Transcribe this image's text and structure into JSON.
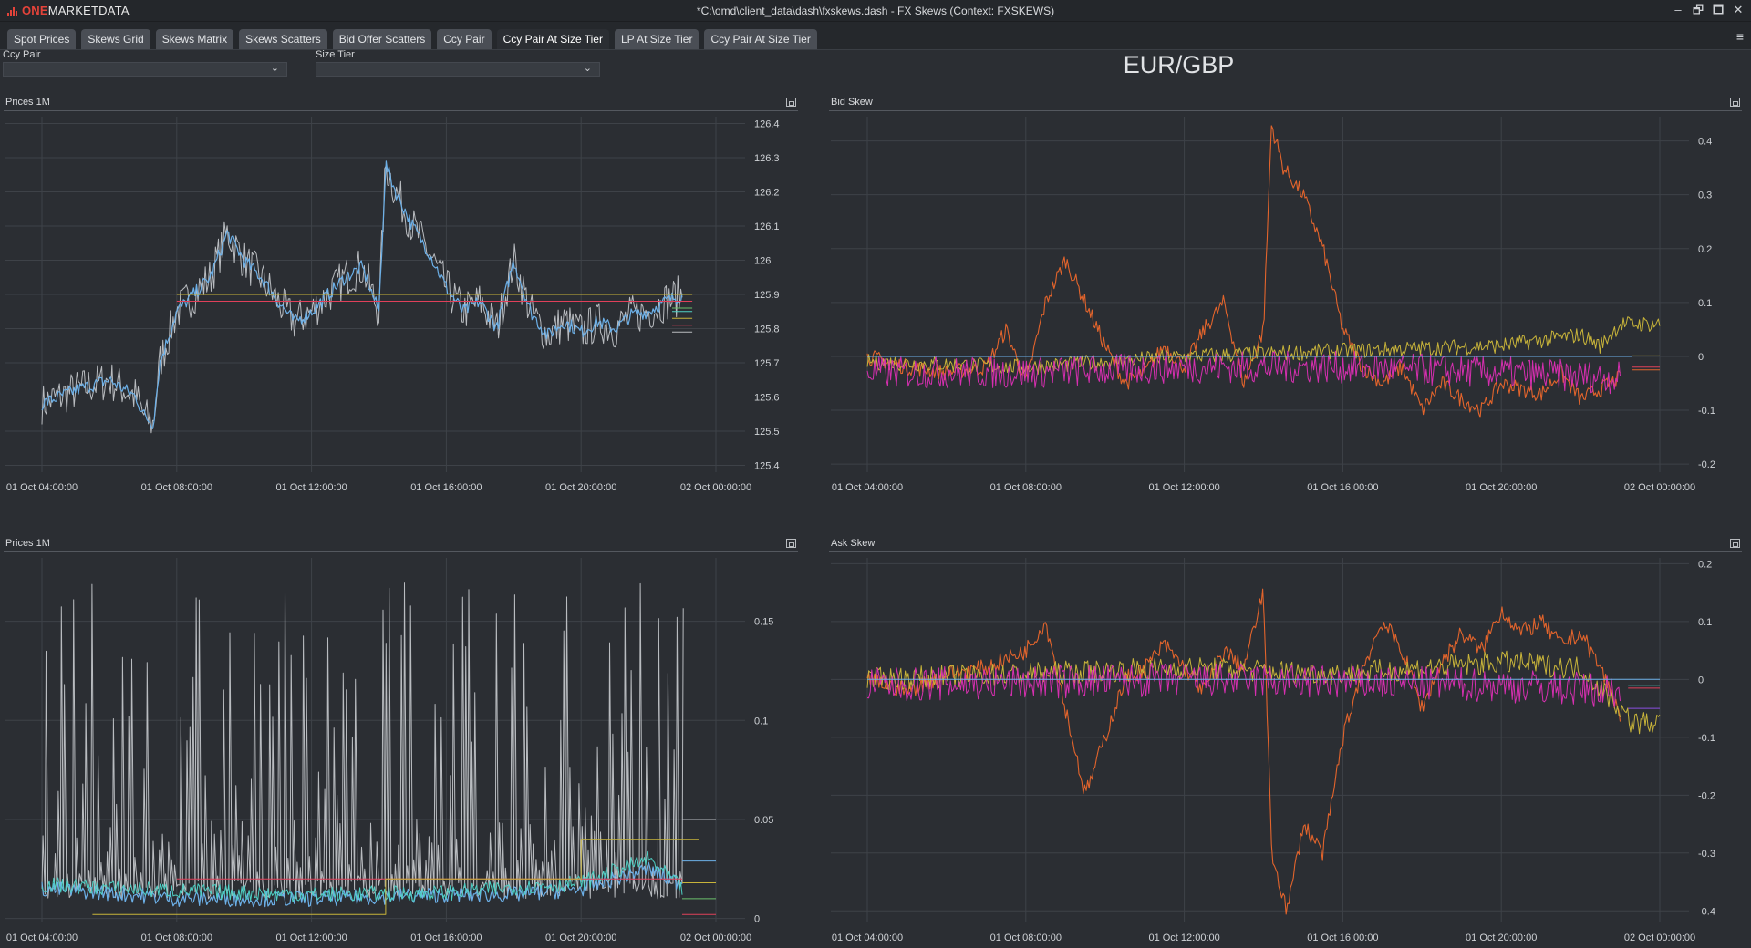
{
  "app": {
    "logo_brand": "ONE",
    "logo_rest": "MARKETDATA",
    "window_title": "*C:\\omd\\client_data\\dash\\fxskews.dash - FX Skews (Context: FXSKEWS)",
    "window_controls": [
      "–",
      "🗗",
      "🗖",
      "✕"
    ]
  },
  "tabs": [
    {
      "label": "Spot Prices",
      "active": false
    },
    {
      "label": "Skews Grid",
      "active": false
    },
    {
      "label": "Skews Matrix",
      "active": false
    },
    {
      "label": "Skews Scatters",
      "active": false
    },
    {
      "label": "Bid Offer Scatters",
      "active": false
    },
    {
      "label": "Ccy Pair",
      "active": false
    },
    {
      "label": "Ccy Pair At Size Tier",
      "active": true
    },
    {
      "label": "LP At Size Tier",
      "active": false
    },
    {
      "label": "Ccy Pair At Size Tier",
      "active": false
    }
  ],
  "menu_icon": "≡",
  "filters": {
    "ccy_pair_label": "Ccy Pair",
    "ccy_pair_value": "",
    "size_tier_label": "Size Tier",
    "size_tier_value": ""
  },
  "pair_title": "EUR/GBP",
  "colors": {
    "grid": "#3e4248",
    "blue": "#6cb0e8",
    "cyan": "#4fd1c5",
    "grey": "#b9bcc0",
    "orange": "#e2642c",
    "magenta": "#d62fb0",
    "yellow": "#c8b43a",
    "red": "#e0405a",
    "green": "#6bc06b",
    "purple": "#8a4fe0"
  },
  "chart_data": [
    {
      "id": "prices-top",
      "type": "line",
      "title": "Prices 1M",
      "xlabels": [
        "01 Oct 04:00:00",
        "01 Oct 08:00:00",
        "01 Oct 12:00:00",
        "01 Oct 16:00:00",
        "01 Oct 20:00:00",
        "02 Oct 00:00:00"
      ],
      "xlim": [
        4,
        24
      ],
      "ylim": [
        125.38,
        126.42
      ],
      "yticks": [
        125.4,
        125.5,
        125.6,
        125.7,
        125.8,
        125.9,
        126,
        126.1,
        126.2,
        126.3,
        126.4
      ],
      "ytick_labels": [
        "125.4",
        "125.5",
        "125.6",
        "125.7",
        "125.8",
        "125.9",
        "126",
        "126.1",
        "126.2",
        "126.3",
        "126.4"
      ],
      "grid": true,
      "series": [
        {
          "color": "grey",
          "width": 1.0,
          "kind": "band",
          "band": 0.06,
          "x": [
            4,
            4.5,
            5,
            6,
            6.8,
            7,
            7.3,
            7.5,
            8,
            8.5,
            9,
            9.5,
            10,
            10.5,
            11,
            11.5,
            12,
            12.5,
            13,
            13.5,
            14,
            14.2,
            14.5,
            15,
            15.5,
            16,
            16.5,
            17,
            17.5,
            18,
            18.5,
            19,
            19.5,
            20,
            20.5,
            21,
            21.5,
            22,
            22.5,
            23
          ],
          "y": [
            125.58,
            125.6,
            125.62,
            125.65,
            125.6,
            125.55,
            125.52,
            125.7,
            125.85,
            125.9,
            125.95,
            126.08,
            126.0,
            125.95,
            125.88,
            125.82,
            125.85,
            125.9,
            125.95,
            125.98,
            125.85,
            126.28,
            126.2,
            126.1,
            126.02,
            125.92,
            125.85,
            125.88,
            125.8,
            126.0,
            125.85,
            125.78,
            125.82,
            125.79,
            125.82,
            125.8,
            125.84,
            125.85,
            125.88,
            125.9
          ]
        },
        {
          "color": "blue",
          "width": 1.2,
          "kind": "band",
          "band": 0.02,
          "x": [
            4,
            4.5,
            5,
            6,
            6.8,
            7,
            7.3,
            7.5,
            8,
            8.5,
            9,
            9.5,
            10,
            10.5,
            11,
            11.5,
            12,
            12.5,
            13,
            13.5,
            14,
            14.2,
            14.5,
            15,
            15.5,
            16,
            16.5,
            17,
            17.5,
            18,
            18.5,
            19,
            19.5,
            20,
            20.5,
            21,
            21.5,
            22,
            22.5,
            23
          ],
          "y": [
            125.58,
            125.6,
            125.62,
            125.65,
            125.6,
            125.55,
            125.52,
            125.7,
            125.85,
            125.9,
            125.95,
            126.08,
            126.0,
            125.95,
            125.88,
            125.82,
            125.85,
            125.9,
            125.95,
            125.98,
            125.85,
            126.28,
            126.2,
            126.1,
            126.02,
            125.92,
            125.85,
            125.88,
            125.8,
            126.0,
            125.85,
            125.78,
            125.82,
            125.79,
            125.82,
            125.8,
            125.84,
            125.85,
            125.88,
            125.9
          ]
        },
        {
          "color": "red",
          "width": 1,
          "x": [
            8,
            23.3
          ],
          "y": [
            125.88,
            125.88
          ]
        },
        {
          "color": "yellow",
          "width": 1,
          "x": [
            8,
            23.3
          ],
          "y": [
            125.9,
            125.9
          ]
        },
        {
          "color": "green",
          "width": 1,
          "x": [
            22.7,
            23.3
          ],
          "y": [
            125.86,
            125.86
          ]
        },
        {
          "color": "cyan",
          "width": 1,
          "x": [
            22.7,
            23.3
          ],
          "y": [
            125.85,
            125.85
          ]
        },
        {
          "color": "yellow",
          "width": 1,
          "x": [
            22.7,
            23.3
          ],
          "y": [
            125.83,
            125.83
          ]
        },
        {
          "color": "grey",
          "width": 1,
          "x": [
            22.7,
            23.3
          ],
          "y": [
            125.79,
            125.79
          ]
        },
        {
          "color": "red",
          "width": 1,
          "x": [
            22.7,
            23.3
          ],
          "y": [
            125.81,
            125.81
          ]
        }
      ]
    },
    {
      "id": "bid-skew",
      "type": "line",
      "title": "Bid Skew",
      "xlabels": [
        "01 Oct 04:00:00",
        "01 Oct 08:00:00",
        "01 Oct 12:00:00",
        "01 Oct 16:00:00",
        "01 Oct 20:00:00",
        "02 Oct 00:00:00"
      ],
      "xlim": [
        4,
        24
      ],
      "ylim": [
        -0.215,
        0.445
      ],
      "yticks": [
        -0.2,
        -0.1,
        0,
        0.1,
        0.2,
        0.3,
        0.4
      ],
      "ytick_labels": [
        "-0.2",
        "-0.1",
        "0",
        "0.1",
        "0.2",
        "0.3",
        "0.4"
      ],
      "grid": true,
      "series": [
        {
          "color": "orange",
          "width": 1.1,
          "kind": "noise",
          "noise": 0.015,
          "x": [
            4,
            5,
            6,
            7,
            7.5,
            8,
            8.5,
            9,
            9.5,
            10,
            10.5,
            11,
            11.5,
            12,
            12.5,
            13,
            13.5,
            14,
            14.2,
            14.5,
            15,
            15.5,
            16,
            16.5,
            17,
            17.5,
            18,
            18.5,
            19,
            19.5,
            20,
            20.5,
            21,
            21.5,
            22,
            22.5,
            23
          ],
          "y": [
            0,
            -0.02,
            -0.03,
            -0.02,
            0.05,
            -0.05,
            0.1,
            0.18,
            0.1,
            0.02,
            -0.05,
            -0.03,
            0.02,
            -0.02,
            0.05,
            0.1,
            -0.05,
            0.05,
            0.43,
            0.35,
            0.3,
            0.2,
            0.05,
            -0.02,
            -0.05,
            -0.02,
            -0.1,
            -0.05,
            -0.08,
            -0.1,
            -0.05,
            -0.06,
            -0.07,
            -0.03,
            -0.08,
            -0.06,
            -0.04
          ]
        },
        {
          "color": "yellow",
          "width": 1,
          "kind": "noise",
          "noise": 0.015,
          "x": [
            4,
            8,
            12,
            16,
            20,
            21,
            22,
            22.5,
            23,
            24
          ],
          "y": [
            -0.01,
            -0.02,
            0,
            0.01,
            0.02,
            0.03,
            0.04,
            0.02,
            0.06,
            0.06
          ]
        },
        {
          "color": "magenta",
          "width": 1,
          "kind": "noise",
          "noise": 0.03,
          "x": [
            4,
            8,
            12,
            16,
            20,
            23
          ],
          "y": [
            -0.03,
            -0.03,
            -0.02,
            -0.02,
            -0.03,
            -0.04
          ]
        },
        {
          "color": "blue",
          "width": 1,
          "x": [
            4,
            23.3
          ],
          "y": [
            0,
            0
          ]
        },
        {
          "color": "red",
          "width": 1,
          "x": [
            23.3,
            24
          ],
          "y": [
            -0.02,
            -0.02
          ]
        },
        {
          "color": "orange",
          "width": 1,
          "x": [
            23.3,
            24
          ],
          "y": [
            -0.025,
            -0.025
          ]
        },
        {
          "color": "yellow",
          "width": 1,
          "x": [
            23.3,
            24
          ],
          "y": [
            0.001,
            0.001
          ]
        }
      ]
    },
    {
      "id": "prices-bottom",
      "type": "line",
      "title": "Prices 1M",
      "xlabels": [
        "01 Oct 04:00:00",
        "01 Oct 08:00:00",
        "01 Oct 12:00:00",
        "01 Oct 16:00:00",
        "01 Oct 20:00:00",
        "02 Oct 00:00:00"
      ],
      "xlim": [
        4,
        24
      ],
      "ylim": [
        -0.002,
        0.182
      ],
      "yticks": [
        0,
        0.05,
        0.1,
        0.15
      ],
      "ytick_labels": [
        "0",
        "0.05",
        "0.1",
        "0.15"
      ],
      "grid": true,
      "series": [
        {
          "color": "grey",
          "width": 1,
          "kind": "spikes",
          "x": [
            4,
            24
          ],
          "y": [
            0.01,
            0.17
          ],
          "n": 220
        },
        {
          "color": "blue",
          "width": 1.2,
          "kind": "noise",
          "noise": 0.004,
          "x": [
            4,
            6,
            8,
            10,
            12,
            14,
            16,
            18,
            20,
            21,
            22,
            22.6,
            23
          ],
          "y": [
            0.015,
            0.013,
            0.01,
            0.01,
            0.01,
            0.011,
            0.012,
            0.012,
            0.015,
            0.02,
            0.025,
            0.02,
            0.018
          ]
        },
        {
          "color": "cyan",
          "width": 1,
          "kind": "noise",
          "noise": 0.004,
          "x": [
            4,
            8,
            12,
            16,
            20,
            22,
            23
          ],
          "y": [
            0.017,
            0.014,
            0.012,
            0.013,
            0.018,
            0.03,
            0.015
          ]
        },
        {
          "color": "red",
          "width": 1,
          "x": [
            8,
            23
          ],
          "y": [
            0.02,
            0.02
          ]
        },
        {
          "color": "yellow",
          "width": 1,
          "x": [
            5.5,
            14.2,
            14.2,
            20,
            20,
            23.5
          ],
          "y": [
            0.002,
            0.002,
            0.02,
            0.02,
            0.04,
            0.04
          ]
        },
        {
          "color": "grey",
          "width": 1,
          "x": [
            23,
            24
          ],
          "y": [
            0.05,
            0.05
          ]
        },
        {
          "color": "blue",
          "width": 1,
          "x": [
            23,
            24
          ],
          "y": [
            0.029,
            0.029
          ]
        },
        {
          "color": "green",
          "width": 1,
          "x": [
            23,
            24
          ],
          "y": [
            0.01,
            0.01
          ]
        },
        {
          "color": "yellow",
          "width": 1,
          "x": [
            23,
            24
          ],
          "y": [
            0.018,
            0.018
          ]
        },
        {
          "color": "red",
          "width": 1,
          "x": [
            23,
            24
          ],
          "y": [
            0.002,
            0.002
          ]
        }
      ]
    },
    {
      "id": "ask-skew",
      "type": "line",
      "title": "Ask Skew",
      "xlabels": [
        "01 Oct 04:00:00",
        "01 Oct 08:00:00",
        "01 Oct 12:00:00",
        "01 Oct 16:00:00",
        "01 Oct 20:00:00",
        "02 Oct 00:00:00"
      ],
      "xlim": [
        4,
        24
      ],
      "ylim": [
        -0.42,
        0.21
      ],
      "yticks": [
        -0.4,
        -0.3,
        -0.2,
        -0.1,
        0,
        0.1,
        0.2
      ],
      "ytick_labels": [
        "-0.4",
        "-0.3",
        "-0.2",
        "-0.1",
        "0",
        "0.1",
        "0.2"
      ],
      "grid": true,
      "series": [
        {
          "color": "orange",
          "width": 1.1,
          "kind": "noise",
          "noise": 0.015,
          "x": [
            4,
            5,
            6,
            7,
            8,
            8.5,
            9,
            9.5,
            10,
            10.5,
            11,
            11.5,
            12,
            12.5,
            13,
            13.5,
            14,
            14.2,
            14.6,
            15,
            15.5,
            16,
            16.5,
            17,
            17.5,
            18,
            18.5,
            19,
            19.5,
            20,
            20.5,
            21,
            21.5,
            22,
            22.5,
            23
          ],
          "y": [
            0,
            -0.02,
            0.01,
            0.02,
            0.05,
            0.1,
            -0.05,
            -0.2,
            -0.1,
            0,
            0.02,
            0.06,
            0.02,
            -0.02,
            0.05,
            0.02,
            0.15,
            -0.3,
            -0.4,
            -0.25,
            -0.3,
            -0.1,
            0.02,
            0.1,
            0.05,
            -0.05,
            0.03,
            0.08,
            0.05,
            0.12,
            0.08,
            0.1,
            0.06,
            0.08,
            0.02,
            -0.06
          ]
        },
        {
          "color": "yellow",
          "width": 1,
          "kind": "noise",
          "noise": 0.02,
          "x": [
            4,
            8,
            12,
            16,
            20,
            22,
            23,
            23.3,
            24
          ],
          "y": [
            0.0,
            0.01,
            0.02,
            0.01,
            0.03,
            0.02,
            -0.05,
            -0.075,
            -0.075
          ]
        },
        {
          "color": "magenta",
          "width": 1,
          "kind": "noise",
          "noise": 0.03,
          "x": [
            4,
            8,
            12,
            16,
            20,
            23
          ],
          "y": [
            -0.01,
            -0.005,
            0,
            -0.005,
            -0.01,
            -0.02
          ]
        },
        {
          "color": "blue",
          "width": 1,
          "x": [
            4,
            24
          ],
          "y": [
            0,
            0
          ]
        },
        {
          "color": "purple",
          "width": 1,
          "x": [
            23.2,
            24
          ],
          "y": [
            -0.05,
            -0.05
          ]
        },
        {
          "color": "red",
          "width": 1,
          "x": [
            23.2,
            24
          ],
          "y": [
            -0.015,
            -0.015
          ]
        },
        {
          "color": "cyan",
          "width": 1,
          "x": [
            23.2,
            24
          ],
          "y": [
            -0.01,
            -0.01
          ]
        }
      ]
    }
  ]
}
